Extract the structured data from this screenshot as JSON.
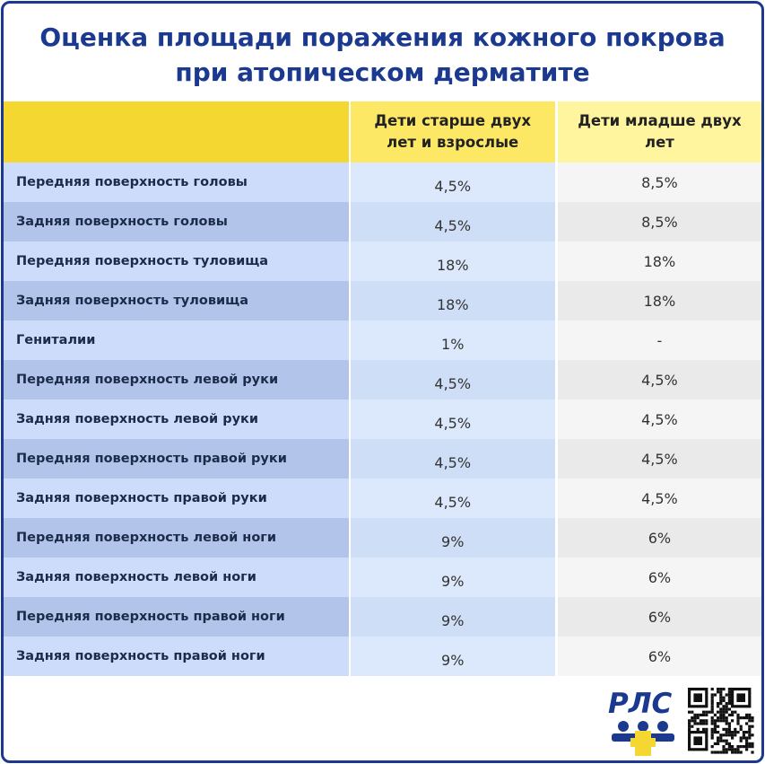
{
  "header": {
    "title_lines": [
      "Оценка площади поражения кожного покрова",
      "при атопическом дерматите"
    ]
  },
  "table": {
    "columns": [
      "",
      "Дети старше двух лет и взрослые",
      "Дети младше двух лет"
    ],
    "rows": [
      [
        "Передняя поверхность головы",
        "4,5%",
        "8,5%"
      ],
      [
        "Задняя поверхность головы",
        "4,5%",
        "8,5%"
      ],
      [
        "Передняя поверхность туловища",
        "18%",
        "18%"
      ],
      [
        "Задняя поверхность туловища",
        "18%",
        "18%"
      ],
      [
        "Гениталии",
        "1%",
        "-"
      ],
      [
        "Передняя поверхность левой руки",
        "4,5%",
        "4,5%"
      ],
      [
        "Задняя поверхность левой руки",
        "4,5%",
        "4,5%"
      ],
      [
        "Передняя поверхность правой руки",
        "4,5%",
        "4,5%"
      ],
      [
        "Задняя поверхность правой руки",
        "4,5%",
        "4,5%"
      ],
      [
        "Передняя поверхность левой ноги",
        "9%",
        "6%"
      ],
      [
        "Задняя поверхность левой ноги",
        "9%",
        "6%"
      ],
      [
        "Передняя поверхность правой ноги",
        "9%",
        "6%"
      ],
      [
        "Задняя поверхность правой ноги",
        "9%",
        "6%"
      ]
    ]
  },
  "logo": {
    "text": "РЛС"
  }
}
